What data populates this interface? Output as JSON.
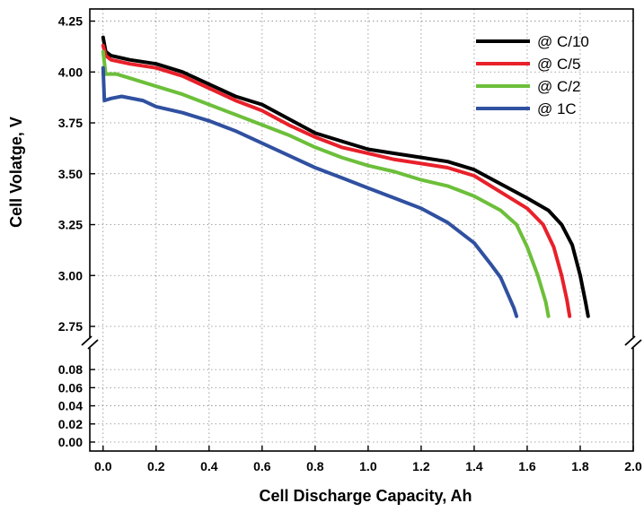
{
  "chart_data": {
    "type": "line",
    "xlabel": "Cell Discharge Capacity, Ah",
    "ylabel": "Cell Volatge, V",
    "xlim": [
      -0.05,
      2.0
    ],
    "x_ticks": [
      0.0,
      0.2,
      0.4,
      0.6,
      0.8,
      1.0,
      1.2,
      1.4,
      1.6,
      1.8,
      2.0
    ],
    "x_tick_labels": [
      "0.0",
      "0.2",
      "0.4",
      "0.6",
      "0.8",
      "1.0",
      "1.2",
      "1.4",
      "1.6",
      "1.8",
      "2.0"
    ],
    "y_axis_break": true,
    "y_upper": {
      "ylim": [
        2.75,
        4.27
      ],
      "ticks": [
        2.75,
        3.0,
        3.25,
        3.5,
        3.75,
        4.0,
        4.25
      ],
      "tick_labels": [
        "2.75",
        "3.00",
        "3.25",
        "3.50",
        "3.75",
        "4.00",
        "4.25"
      ]
    },
    "y_lower": {
      "ylim": [
        0.0,
        0.092
      ],
      "ticks": [
        0.0,
        0.02,
        0.04,
        0.06,
        0.08
      ],
      "tick_labels": [
        "0.00",
        "0.02",
        "0.04",
        "0.06",
        "0.08"
      ]
    },
    "grid": true,
    "legend_position": "top-right",
    "series": [
      {
        "name": "@ C/10",
        "color": "#000000",
        "points": [
          [
            0.0,
            4.17
          ],
          [
            0.01,
            4.1
          ],
          [
            0.03,
            4.08
          ],
          [
            0.1,
            4.06
          ],
          [
            0.2,
            4.04
          ],
          [
            0.3,
            4.0
          ],
          [
            0.4,
            3.94
          ],
          [
            0.5,
            3.88
          ],
          [
            0.6,
            3.84
          ],
          [
            0.7,
            3.77
          ],
          [
            0.8,
            3.7
          ],
          [
            0.9,
            3.66
          ],
          [
            1.0,
            3.62
          ],
          [
            1.1,
            3.6
          ],
          [
            1.2,
            3.58
          ],
          [
            1.3,
            3.56
          ],
          [
            1.4,
            3.52
          ],
          [
            1.5,
            3.45
          ],
          [
            1.6,
            3.38
          ],
          [
            1.68,
            3.32
          ],
          [
            1.73,
            3.25
          ],
          [
            1.77,
            3.15
          ],
          [
            1.8,
            3.0
          ],
          [
            1.82,
            2.87
          ],
          [
            1.83,
            2.8
          ]
        ]
      },
      {
        "name": "@ C/5",
        "color": "#e8202a",
        "points": [
          [
            0.0,
            4.13
          ],
          [
            0.01,
            4.08
          ],
          [
            0.03,
            4.06
          ],
          [
            0.1,
            4.04
          ],
          [
            0.2,
            4.02
          ],
          [
            0.3,
            3.98
          ],
          [
            0.4,
            3.92
          ],
          [
            0.5,
            3.86
          ],
          [
            0.6,
            3.81
          ],
          [
            0.7,
            3.74
          ],
          [
            0.8,
            3.68
          ],
          [
            0.9,
            3.63
          ],
          [
            1.0,
            3.6
          ],
          [
            1.1,
            3.57
          ],
          [
            1.2,
            3.55
          ],
          [
            1.3,
            3.53
          ],
          [
            1.4,
            3.49
          ],
          [
            1.5,
            3.41
          ],
          [
            1.6,
            3.33
          ],
          [
            1.66,
            3.25
          ],
          [
            1.7,
            3.14
          ],
          [
            1.73,
            3.0
          ],
          [
            1.75,
            2.88
          ],
          [
            1.76,
            2.8
          ]
        ]
      },
      {
        "name": "@ C/2",
        "color": "#6cbf3a",
        "points": [
          [
            0.0,
            4.1
          ],
          [
            0.01,
            3.99
          ],
          [
            0.05,
            3.99
          ],
          [
            0.1,
            3.97
          ],
          [
            0.2,
            3.93
          ],
          [
            0.3,
            3.89
          ],
          [
            0.4,
            3.84
          ],
          [
            0.5,
            3.79
          ],
          [
            0.6,
            3.74
          ],
          [
            0.7,
            3.69
          ],
          [
            0.8,
            3.63
          ],
          [
            0.9,
            3.58
          ],
          [
            1.0,
            3.54
          ],
          [
            1.1,
            3.51
          ],
          [
            1.2,
            3.47
          ],
          [
            1.3,
            3.44
          ],
          [
            1.4,
            3.39
          ],
          [
            1.5,
            3.32
          ],
          [
            1.56,
            3.25
          ],
          [
            1.6,
            3.14
          ],
          [
            1.64,
            3.0
          ],
          [
            1.67,
            2.87
          ],
          [
            1.68,
            2.8
          ]
        ]
      },
      {
        "name": "@ 1C",
        "color": "#3050a0",
        "points": [
          [
            0.0,
            4.02
          ],
          [
            0.005,
            3.86
          ],
          [
            0.03,
            3.87
          ],
          [
            0.07,
            3.88
          ],
          [
            0.15,
            3.86
          ],
          [
            0.2,
            3.83
          ],
          [
            0.3,
            3.8
          ],
          [
            0.4,
            3.76
          ],
          [
            0.5,
            3.71
          ],
          [
            0.6,
            3.65
          ],
          [
            0.7,
            3.59
          ],
          [
            0.8,
            3.53
          ],
          [
            0.9,
            3.48
          ],
          [
            1.0,
            3.43
          ],
          [
            1.1,
            3.38
          ],
          [
            1.2,
            3.33
          ],
          [
            1.3,
            3.26
          ],
          [
            1.4,
            3.16
          ],
          [
            1.46,
            3.06
          ],
          [
            1.5,
            2.99
          ],
          [
            1.53,
            2.9
          ],
          [
            1.55,
            2.84
          ],
          [
            1.56,
            2.8
          ]
        ]
      }
    ]
  }
}
